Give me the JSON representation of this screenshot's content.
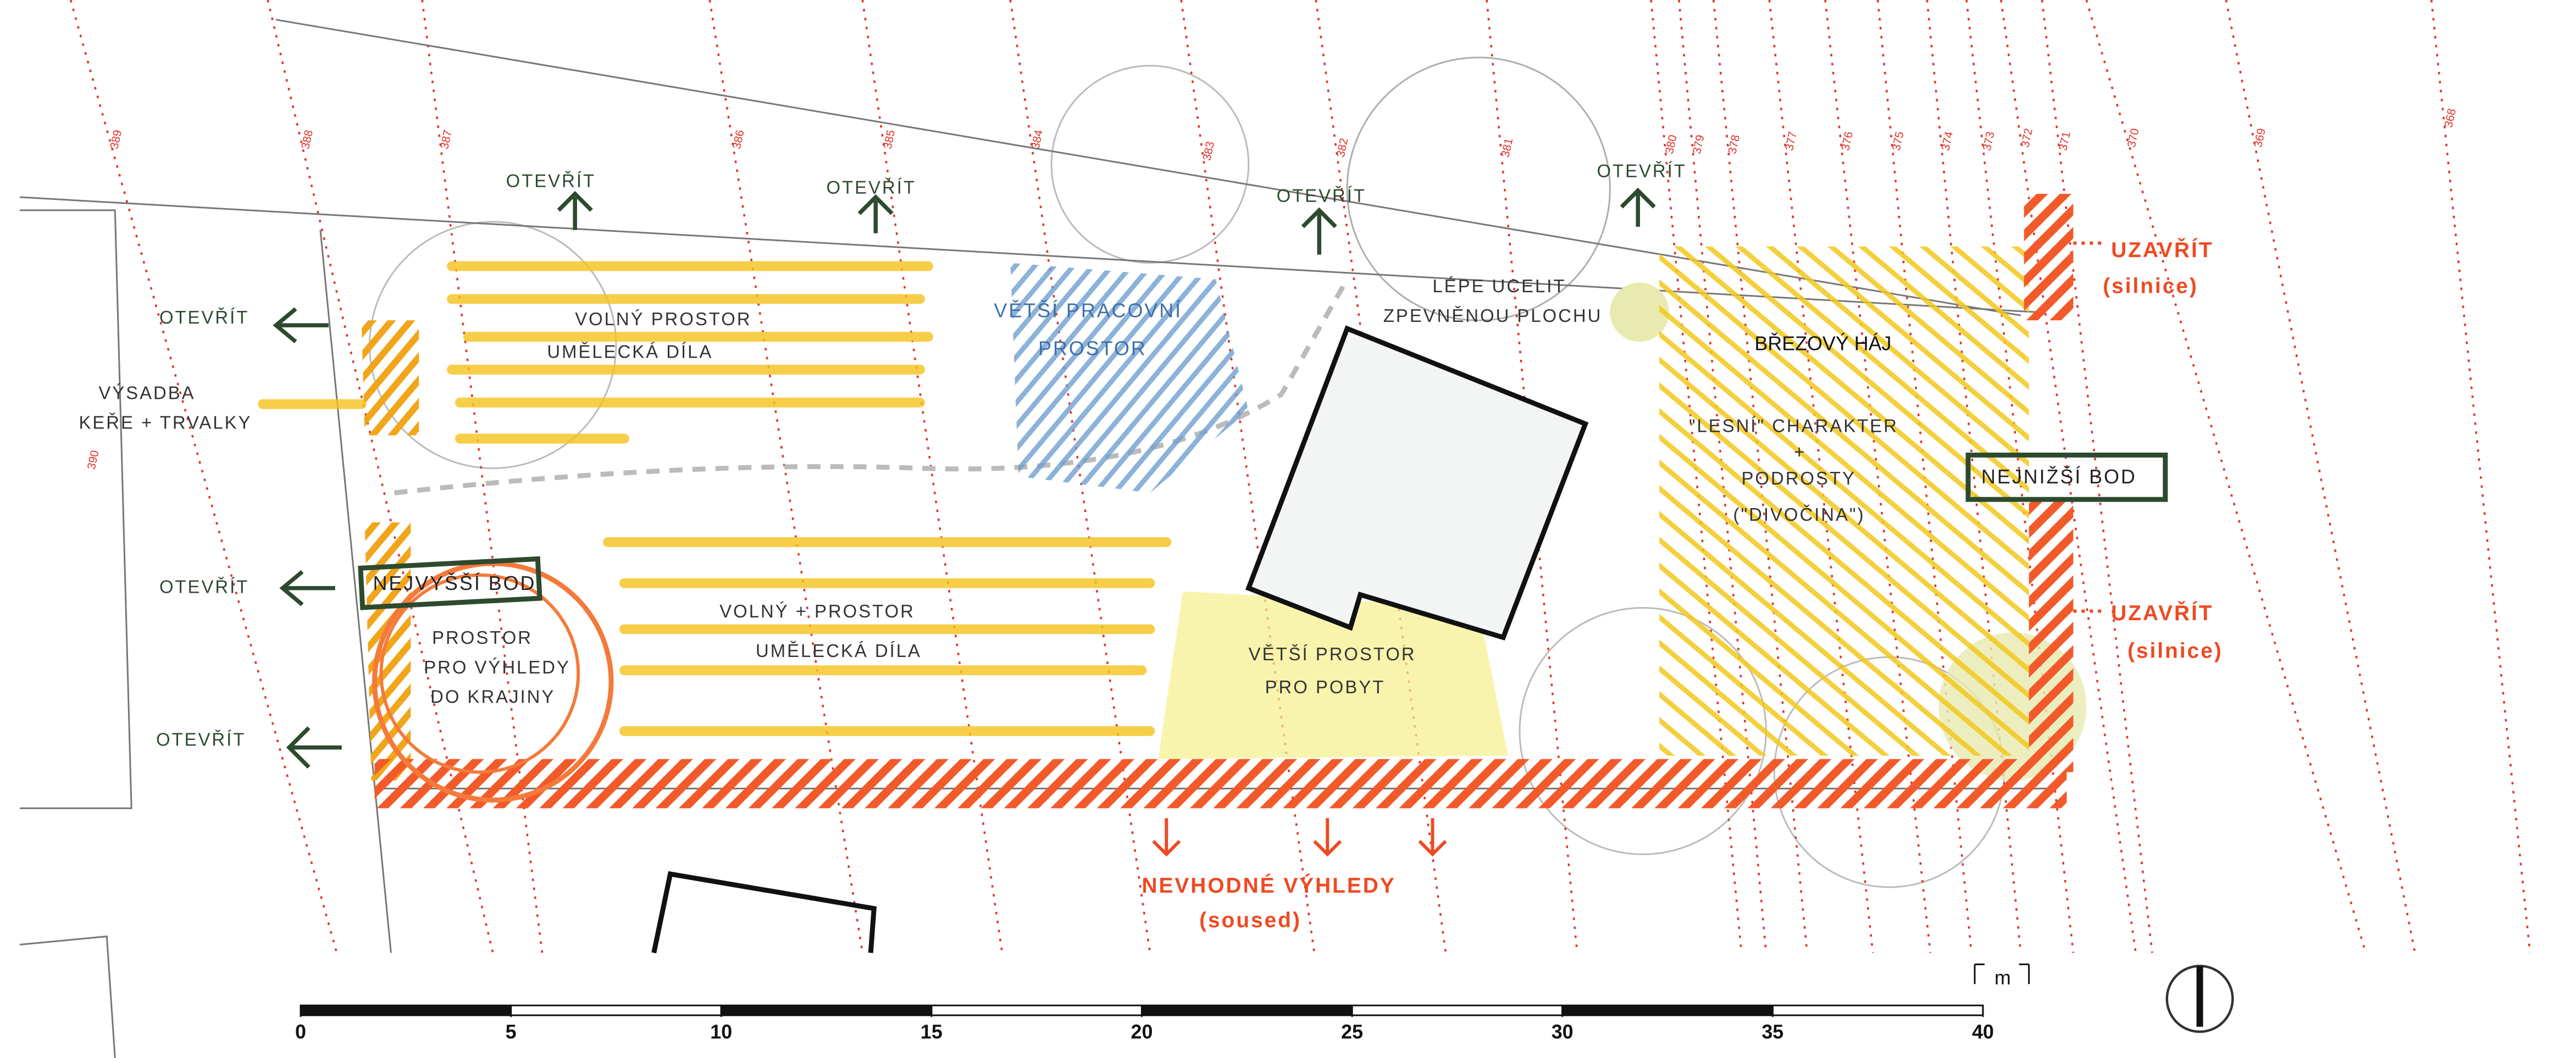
{
  "open_labels": [
    "OTEVŘÍT",
    "OTEVŘÍT",
    "OTEVŘÍT",
    "OTEVŘÍT",
    "OTEVŘÍT",
    "OTEVŘÍT",
    "OTEVŘÍT"
  ],
  "close_labels": [
    [
      "UZAVŘÍT",
      "(silnice)"
    ],
    [
      "UZAVŘÍT",
      "(silnice)"
    ]
  ],
  "planting": [
    "VÝSADBA",
    "KEŘE + TRVALKY"
  ],
  "free_space": [
    [
      "VOLNÝ PROSTOR",
      "UMĚLECKÁ DÍLA"
    ],
    [
      "VOLNÝ + PROSTOR",
      "UMĚLECKÁ DÍLA"
    ]
  ],
  "work_space": [
    "VĚTŠÍ PRACOVNÍ",
    "PROSTOR"
  ],
  "paving": [
    "LÉPE UCELIT",
    "ZPEVNĚNOU PLOCHU"
  ],
  "grove": "BŘEZOVÝ HÁJ",
  "forest": [
    "\"LESNÍ\" CHARAKTER",
    "+",
    "PODROSTY",
    "(\"DIVOČINA\")"
  ],
  "lowest_point": "NEJNIŽŠÍ BOD",
  "highest_point": "NEJVYŠŠÍ BOD",
  "views": [
    "PROSTOR",
    "PRO VÝHLEDY",
    "DO KRAJINY"
  ],
  "stay": [
    "VĚTŠÍ PROSTOR",
    "PRO POBYT"
  ],
  "bad_views": [
    "NEVHODNÉ VÝHLEDY",
    "(soused)"
  ],
  "contours": [
    "389",
    "388",
    "387",
    "386",
    "385",
    "384",
    "383",
    "382",
    "381",
    "380",
    "379",
    "378",
    "377",
    "376",
    "375",
    "374",
    "373",
    "372",
    "371",
    "370",
    "369",
    "368",
    "390"
  ],
  "scale": {
    "ticks": [
      0,
      5,
      10,
      15,
      20,
      25,
      30,
      35,
      40
    ],
    "unit": "m"
  }
}
